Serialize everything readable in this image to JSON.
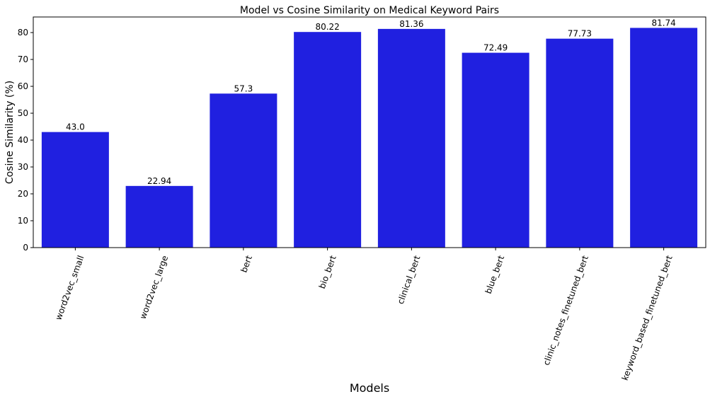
{
  "chart_data": {
    "type": "bar",
    "title": "Model vs Cosine Similarity on Medical Keyword Pairs",
    "xlabel": "Models",
    "ylabel": "Cosine Similarity (%)",
    "categories": [
      "word2vec_small",
      "word2vec_large",
      "bert",
      "bio_bert",
      "clinical_bert",
      "blue_bert",
      "clinic_notes_finetuned_bert",
      "keyword_based_finetuned_bert"
    ],
    "values": [
      43.0,
      22.94,
      57.3,
      80.22,
      81.36,
      72.49,
      77.73,
      81.74
    ],
    "data_labels": [
      "43.0",
      "22.94",
      "57.3",
      "80.22",
      "81.36",
      "72.49",
      "77.73",
      "81.74"
    ],
    "ylim": [
      0,
      85.8
    ],
    "yticks": [
      0,
      10,
      20,
      30,
      40,
      50,
      60,
      70,
      80
    ],
    "bar_color": "#2020e0",
    "grid": false,
    "legend": "none"
  }
}
